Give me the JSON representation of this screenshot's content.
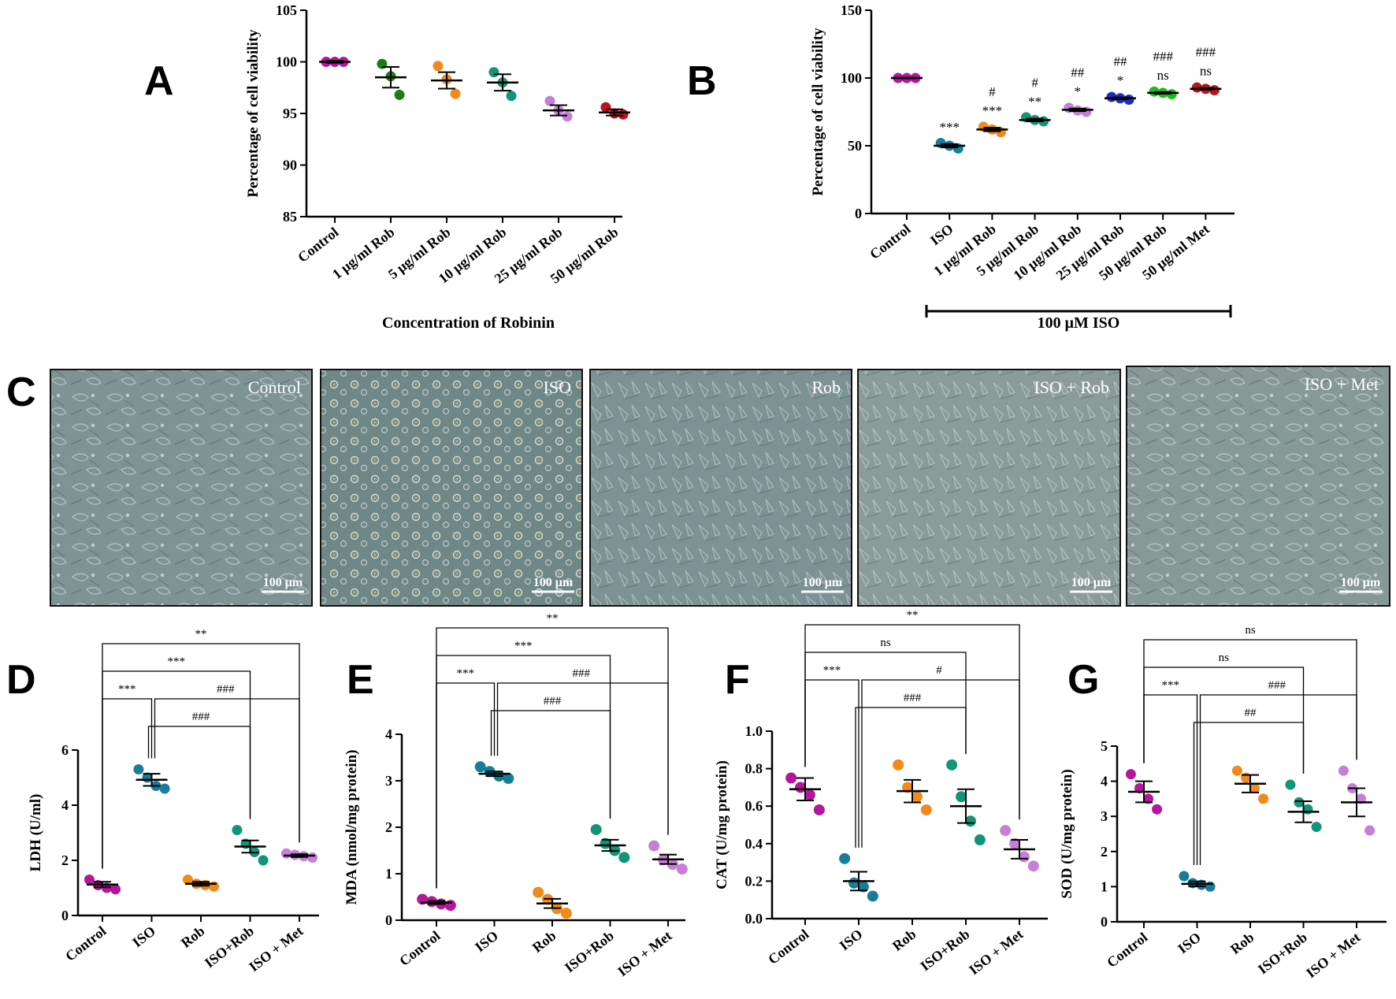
{
  "panel_letters": [
    "A",
    "B",
    "C",
    "D",
    "E",
    "F",
    "G"
  ],
  "palette": {
    "magenta": "#b4179b",
    "green": "#1b7d14",
    "orange": "#f08a1a",
    "teal": "#119577",
    "lavender": "#c77ed9",
    "red": "#b7141e",
    "cyan": "#197d9a",
    "blue": "#1d2cc4",
    "lime": "#1fba1f",
    "purple": "#a040b0"
  },
  "chart_data": [
    {
      "id": "A",
      "type": "scatter",
      "ylabel": "Percentage of cell viability",
      "xlabel": "Concentration of Robinin",
      "ylim": [
        85,
        105
      ],
      "yticks": [
        85,
        90,
        95,
        100,
        105
      ],
      "categories": [
        "Control",
        "1 μg/ml Rob",
        "5 μg/ml Rob",
        "10 μg/ml Rob",
        "25 μg/ml Rob",
        "50 μg/ml Rob"
      ],
      "colors": [
        "#b4179b",
        "#1b7d14",
        "#f08a1a",
        "#119577",
        "#c77ed9",
        "#b7141e"
      ],
      "points": [
        [
          100,
          100,
          100
        ],
        [
          99.8,
          98.6,
          96.8
        ],
        [
          99.6,
          98.3,
          96.9
        ],
        [
          99.0,
          98.0,
          96.7
        ],
        [
          96.2,
          95.3,
          94.7
        ],
        [
          95.6,
          95.0,
          94.9
        ]
      ],
      "means": [
        100,
        98.5,
        98.2,
        98.0,
        95.3,
        95.1
      ],
      "errors": [
        0.1,
        1.0,
        0.8,
        0.8,
        0.5,
        0.3
      ]
    },
    {
      "id": "B",
      "type": "scatter",
      "ylabel": "Percentage of cell viability",
      "ylim": [
        0,
        150
      ],
      "yticks": [
        0,
        50,
        100,
        150
      ],
      "categories": [
        "Control",
        "ISO",
        "1 μg/ml Rob",
        "5 μg/ml Rob",
        "10 μg/ml Rob",
        "25 μg/ml Rob",
        "50 μg/ml Rob",
        "50 μg/ml Met"
      ],
      "colors": [
        "#b4179b",
        "#197d9a",
        "#f08a1a",
        "#119577",
        "#c77ed9",
        "#1d2cc4",
        "#1fba1f",
        "#b7141e"
      ],
      "points": [
        [
          100,
          100,
          100
        ],
        [
          52,
          50,
          48
        ],
        [
          64,
          62,
          60
        ],
        [
          71,
          69,
          68
        ],
        [
          78,
          76,
          75
        ],
        [
          86,
          85,
          84
        ],
        [
          90,
          89,
          88
        ],
        [
          93,
          92,
          91
        ]
      ],
      "means": [
        100,
        50,
        62,
        69,
        76.5,
        85,
        89,
        92
      ],
      "errors": [
        0.3,
        1.2,
        1.3,
        1.0,
        1.0,
        0.7,
        0.6,
        0.6
      ],
      "sig_star": [
        "",
        "***",
        "***",
        "**",
        "*",
        "*",
        "ns",
        "ns"
      ],
      "sig_hash": [
        "",
        "",
        "#",
        "#",
        "##",
        "##",
        "###",
        "###"
      ],
      "bracket_label": "100 μM ISO"
    },
    {
      "id": "D",
      "type": "scatter",
      "ylabel": "LDH (U/ml)",
      "ylim": [
        0,
        6
      ],
      "yticks": [
        0,
        2,
        4,
        6
      ],
      "categories": [
        "Control",
        "ISO",
        "Rob",
        "ISO+Rob",
        "ISO + Met"
      ],
      "colors": [
        "#b4179b",
        "#197d9a",
        "#f08a1a",
        "#119577",
        "#c77ed9"
      ],
      "points": [
        [
          1.3,
          1.1,
          1.0,
          0.95
        ],
        [
          5.3,
          5.0,
          4.7,
          4.6
        ],
        [
          1.3,
          1.15,
          1.1,
          1.05
        ],
        [
          3.1,
          2.6,
          2.3,
          2.0
        ],
        [
          2.25,
          2.2,
          2.15,
          2.1
        ]
      ],
      "means": [
        1.12,
        4.92,
        1.15,
        2.5,
        2.17
      ],
      "errors": [
        0.1,
        0.22,
        0.07,
        0.22,
        0.05
      ],
      "comparisons": [
        {
          "from": 0,
          "to": 1,
          "label": "***"
        },
        {
          "from": 0,
          "to": 3,
          "label": "***"
        },
        {
          "from": 0,
          "to": 4,
          "label": "**"
        },
        {
          "from": 1,
          "to": 3,
          "label": "###"
        },
        {
          "from": 1,
          "to": 4,
          "label": "###"
        }
      ]
    },
    {
      "id": "E",
      "type": "scatter",
      "ylabel": "MDA (nmol/mg protein)",
      "ylim": [
        0,
        4
      ],
      "yticks": [
        0,
        1,
        2,
        3,
        4
      ],
      "categories": [
        "Control",
        "ISO",
        "Rob",
        "ISO+Rob",
        "ISO + Met"
      ],
      "colors": [
        "#b4179b",
        "#197d9a",
        "#f08a1a",
        "#119577",
        "#c77ed9"
      ],
      "points": [
        [
          0.45,
          0.4,
          0.35,
          0.32
        ],
        [
          3.3,
          3.2,
          3.1,
          3.05
        ],
        [
          0.6,
          0.45,
          0.25,
          0.15
        ],
        [
          1.95,
          1.65,
          1.5,
          1.35
        ],
        [
          1.6,
          1.3,
          1.2,
          1.1
        ]
      ],
      "means": [
        0.38,
        3.15,
        0.36,
        1.61,
        1.31
      ],
      "errors": [
        0.03,
        0.05,
        0.1,
        0.12,
        0.1
      ],
      "comparisons": [
        {
          "from": 0,
          "to": 1,
          "label": "***"
        },
        {
          "from": 0,
          "to": 3,
          "label": "***"
        },
        {
          "from": 0,
          "to": 4,
          "label": "**"
        },
        {
          "from": 1,
          "to": 3,
          "label": "###"
        },
        {
          "from": 1,
          "to": 4,
          "label": "###"
        }
      ]
    },
    {
      "id": "F",
      "type": "scatter",
      "ylabel": "CAT (U/mg protein)",
      "ylim": [
        0,
        1.0
      ],
      "yticks": [
        0.0,
        0.2,
        0.4,
        0.6,
        0.8,
        1.0
      ],
      "categories": [
        "Control",
        "ISO",
        "Rob",
        "ISO+Rob",
        "ISO + Met"
      ],
      "colors": [
        "#b4179b",
        "#197d9a",
        "#f08a1a",
        "#119577",
        "#c77ed9"
      ],
      "points": [
        [
          0.75,
          0.7,
          0.66,
          0.58
        ],
        [
          0.32,
          0.19,
          0.17,
          0.12
        ],
        [
          0.82,
          0.7,
          0.65,
          0.58
        ],
        [
          0.82,
          0.65,
          0.52,
          0.42
        ],
        [
          0.47,
          0.4,
          0.33,
          0.28
        ]
      ],
      "means": [
        0.69,
        0.2,
        0.68,
        0.6,
        0.37
      ],
      "errors": [
        0.06,
        0.05,
        0.06,
        0.09,
        0.05
      ],
      "comparisons": [
        {
          "from": 0,
          "to": 1,
          "label": "***"
        },
        {
          "from": 0,
          "to": 3,
          "label": "ns"
        },
        {
          "from": 0,
          "to": 4,
          "label": "**"
        },
        {
          "from": 1,
          "to": 3,
          "label": "###"
        },
        {
          "from": 1,
          "to": 4,
          "label": "#"
        }
      ]
    },
    {
      "id": "G",
      "type": "scatter",
      "ylabel": "SOD (U/mg protein)",
      "ylim": [
        0,
        5
      ],
      "yticks": [
        0,
        1,
        2,
        3,
        4,
        5
      ],
      "categories": [
        "Control",
        "ISO",
        "Rob",
        "ISO+Rob",
        "ISO + Met"
      ],
      "colors": [
        "#b4179b",
        "#197d9a",
        "#f08a1a",
        "#119577",
        "#c77ed9"
      ],
      "points": [
        [
          4.2,
          3.8,
          3.5,
          3.2
        ],
        [
          1.3,
          1.1,
          1.05,
          1.0
        ],
        [
          4.3,
          4.1,
          3.8,
          3.5
        ],
        [
          3.9,
          3.4,
          3.2,
          2.7
        ],
        [
          4.3,
          3.8,
          3.5,
          2.6
        ]
      ],
      "means": [
        3.7,
        1.08,
        3.93,
        3.13,
        3.4
      ],
      "errors": [
        0.3,
        0.07,
        0.25,
        0.3,
        0.4
      ],
      "comparisons": [
        {
          "from": 0,
          "to": 1,
          "label": "***"
        },
        {
          "from": 0,
          "to": 3,
          "label": "ns"
        },
        {
          "from": 0,
          "to": 4,
          "label": "ns"
        },
        {
          "from": 1,
          "to": 3,
          "label": "##"
        },
        {
          "from": 1,
          "to": 4,
          "label": "###"
        }
      ]
    }
  ],
  "micrographs": [
    {
      "label": "Control",
      "scale": "100 μm"
    },
    {
      "label": "ISO",
      "scale": "100 μm"
    },
    {
      "label": "Rob",
      "scale": "100 μm"
    },
    {
      "label": "ISO + Rob",
      "scale": "100 μm"
    },
    {
      "label": "ISO + Met",
      "scale": "100 μm"
    }
  ]
}
